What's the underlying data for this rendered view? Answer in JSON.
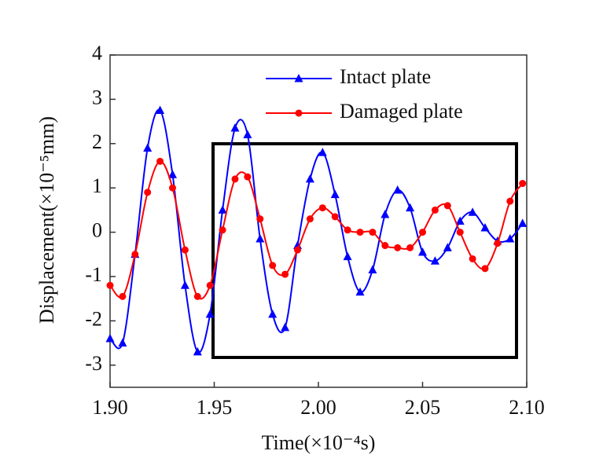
{
  "chart_data": {
    "type": "line",
    "xlabel": "Time(×10⁻⁴s)",
    "ylabel": "Displacement(×10⁻⁵mm)",
    "x": [
      1.9,
      1.906,
      1.912,
      1.918,
      1.924,
      1.93,
      1.936,
      1.942,
      1.948,
      1.954,
      1.96,
      1.966,
      1.972,
      1.978,
      1.984,
      1.99,
      1.996,
      2.002,
      2.008,
      2.014,
      2.02,
      2.026,
      2.032,
      2.038,
      2.044,
      2.05,
      2.056,
      2.062,
      2.068,
      2.074,
      2.08,
      2.086,
      2.092,
      2.098
    ],
    "series": [
      {
        "name": "Intact plate",
        "color": "#0000ff",
        "marker": "triangle",
        "values": [
          -2.4,
          -2.5,
          -0.5,
          1.9,
          2.75,
          1.3,
          -1.2,
          -2.7,
          -1.85,
          0.5,
          2.35,
          2.2,
          -0.15,
          -1.85,
          -2.15,
          -0.3,
          1.2,
          1.8,
          0.85,
          -0.55,
          -1.35,
          -0.85,
          0.4,
          0.95,
          0.55,
          -0.45,
          -0.65,
          -0.35,
          0.25,
          0.45,
          0.1,
          -0.2,
          -0.15,
          0.2
        ]
      },
      {
        "name": "Damaged plate",
        "color": "#ff0000",
        "marker": "circle",
        "values": [
          -1.2,
          -1.45,
          -0.5,
          0.9,
          1.6,
          1.0,
          -0.4,
          -1.45,
          -1.2,
          0.05,
          1.2,
          1.25,
          0.3,
          -0.75,
          -0.95,
          -0.4,
          0.3,
          0.55,
          0.35,
          0.05,
          0.0,
          0.0,
          -0.3,
          -0.35,
          -0.35,
          0.0,
          0.5,
          0.6,
          0.0,
          -0.6,
          -0.82,
          -0.25,
          0.7,
          1.1
        ]
      }
    ],
    "xlim": [
      1.9,
      2.1
    ],
    "xticks": [
      {
        "value": 1.9,
        "label": "1.90"
      },
      1.95,
      {
        "value": 2.0,
        "label": "2.00"
      },
      2.05,
      {
        "value": 2.1,
        "label": "2.10"
      }
    ],
    "ylim": [
      -3.5,
      4
    ],
    "yticks": [
      -3,
      -2,
      -1,
      0,
      1,
      2,
      3,
      4
    ],
    "legend": "upper right",
    "grid": false
  }
}
